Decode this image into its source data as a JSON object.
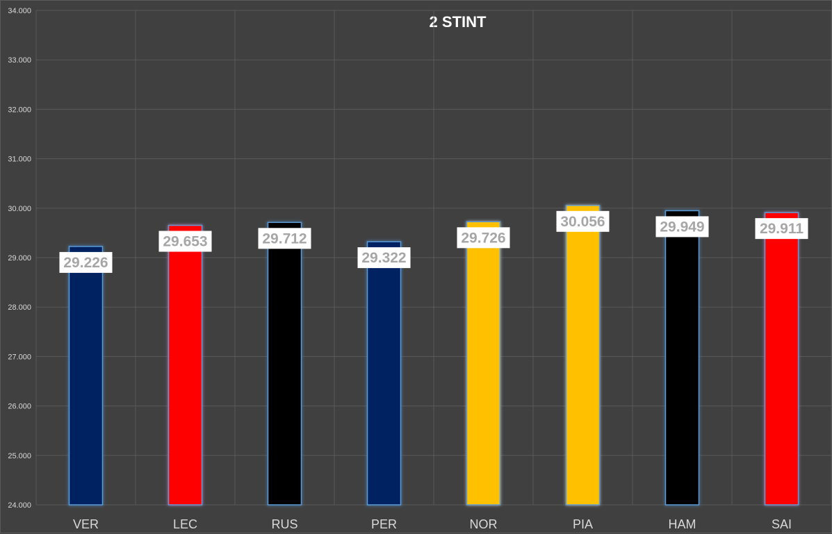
{
  "chart_data": {
    "type": "bar",
    "title": "2 STINT",
    "categories": [
      "VER",
      "LEC",
      "RUS",
      "PER",
      "NOR",
      "PIA",
      "HAM",
      "SAI"
    ],
    "values": [
      29.226,
      29.653,
      29.712,
      29.322,
      29.726,
      30.056,
      29.949,
      29.911
    ],
    "value_labels": [
      "29.226",
      "29.653",
      "29.712",
      "29.322",
      "29.726",
      "30.056",
      "29.949",
      "29.911"
    ],
    "bar_colors": [
      "#002060",
      "#FF0000",
      "#000000",
      "#002060",
      "#FFC000",
      "#FFC000",
      "#000000",
      "#FF0000"
    ],
    "ylim": [
      24,
      34
    ],
    "yticks": [
      "24.000",
      "25.000",
      "26.000",
      "27.000",
      "28.000",
      "29.000",
      "30.000",
      "31.000",
      "32.000",
      "33.000",
      "34.000"
    ],
    "xlabel": "",
    "ylabel": "",
    "grid": true,
    "legend": "none",
    "colors": {
      "background": "#404040",
      "grid": "#595959",
      "tick_text": "#d9d9d9",
      "label_box": "#ffffff",
      "label_text": "#a6a6a6",
      "bar_glow": "#5b9bd5"
    }
  }
}
